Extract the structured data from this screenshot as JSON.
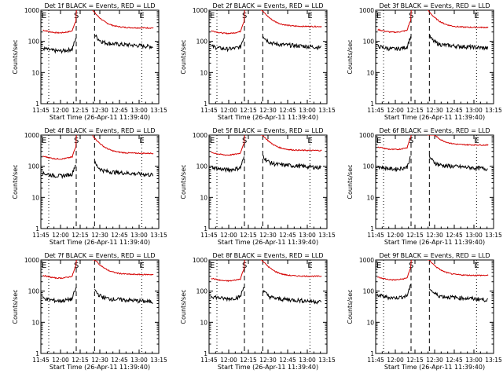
{
  "chart_data": {
    "type": "line",
    "colors": {
      "events": "#000000",
      "lld": "#d40000"
    },
    "x_ticks": [
      "11:45",
      "12:00",
      "12:15",
      "12:30",
      "12:45",
      "13:00",
      "13:15"
    ],
    "y_ticks": [
      "1",
      "10",
      "100",
      "1000"
    ],
    "y_scale": "log",
    "ylim": [
      1,
      1000
    ],
    "xlim_minutes_after_11_45": [
      0,
      90
    ],
    "ylabel": "Counts/sec",
    "xlabel": "Start Time (26-Apr-11 11:39:40)",
    "markers": [
      {
        "label": "E",
        "t": 0
      },
      {
        "label": "S",
        "t": 27
      },
      {
        "label": "E",
        "t": 77
      }
    ],
    "vlines": [
      {
        "t": 6,
        "style": "dotted"
      },
      {
        "t": 27,
        "style": "dashed"
      },
      {
        "t": 41,
        "style": "dashed"
      },
      {
        "t": 77,
        "style": "dotted"
      }
    ],
    "panels": [
      {
        "title": "Det 1f BLACK = Events, RED = LLD",
        "events": {
          "pre": 60,
          "post": 90
        },
        "lld": {
          "pre": 230,
          "post": 270
        }
      },
      {
        "title": "Det 2f BLACK = Events, RED = LLD",
        "events": {
          "pre": 70,
          "post": 85
        },
        "lld": {
          "pre": 220,
          "post": 300
        }
      },
      {
        "title": "Det 3f BLACK = Events, RED = LLD",
        "events": {
          "pre": 70,
          "post": 80
        },
        "lld": {
          "pre": 240,
          "post": 280
        }
      },
      {
        "title": "Det 4f BLACK = Events, RED = LLD",
        "events": {
          "pre": 60,
          "post": 70
        },
        "lld": {
          "pre": 210,
          "post": 260
        }
      },
      {
        "title": "Det 5f BLACK = Events, RED = LLD",
        "events": {
          "pre": 95,
          "post": 120
        },
        "lld": {
          "pre": 280,
          "post": 320
        }
      },
      {
        "title": "Det 6f BLACK = Events, RED = LLD",
        "events": {
          "pre": 100,
          "post": 110
        },
        "lld": {
          "pre": 420,
          "post": 480
        }
      },
      {
        "title": "Det 7f BLACK = Events, RED = LLD",
        "events": {
          "pre": 60,
          "post": 60
        },
        "lld": {
          "pre": 320,
          "post": 340
        }
      },
      {
        "title": "Det 8f BLACK = Events, RED = LLD",
        "events": {
          "pre": 70,
          "post": 60
        },
        "lld": {
          "pre": 260,
          "post": 300
        }
      },
      {
        "title": "Det 9f BLACK = Events, RED = LLD",
        "events": {
          "pre": 75,
          "post": 70
        },
        "lld": {
          "pre": 280,
          "post": 320
        }
      }
    ]
  }
}
